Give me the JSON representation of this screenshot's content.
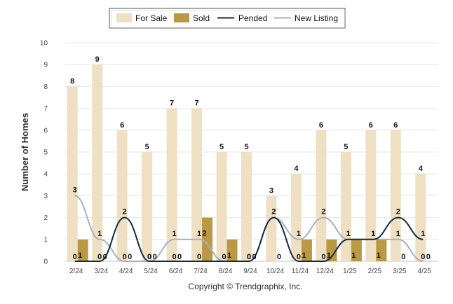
{
  "chart_data": {
    "type": "bar",
    "categories": [
      "2/24",
      "3/24",
      "4/24",
      "5/24",
      "6/24",
      "7/24",
      "8/24",
      "9/24",
      "10/24",
      "11/24",
      "12/24",
      "1/25",
      "2/25",
      "3/25",
      "4/25"
    ],
    "ylabel": "Number of Homes",
    "xlabel": "",
    "ylim": [
      0,
      10
    ],
    "yticks": [
      "0",
      "1",
      "2",
      "3",
      "4",
      "5",
      "6",
      "7",
      "8",
      "9",
      "10"
    ],
    "grid": true,
    "legend_position": "top-center",
    "series": [
      {
        "name": "For Sale",
        "kind": "bar",
        "color": "#efe0c3",
        "values": [
          8,
          9,
          6,
          5,
          7,
          7,
          5,
          5,
          3,
          4,
          6,
          5,
          6,
          6,
          4
        ]
      },
      {
        "name": "Sold",
        "kind": "bar",
        "color": "#bb9843",
        "values": [
          1,
          0,
          0,
          0,
          0,
          2,
          1,
          0,
          0,
          1,
          1,
          1,
          1,
          0,
          0
        ]
      },
      {
        "name": "Pended",
        "kind": "line",
        "color": "#0f2b46",
        "values": [
          0,
          0,
          2,
          0,
          0,
          0,
          0,
          0,
          2,
          0,
          0,
          1,
          1,
          2,
          1
        ]
      },
      {
        "name": "New Listing",
        "kind": "line",
        "color": "#a7b0c0",
        "values": [
          3,
          1,
          0,
          0,
          1,
          1,
          0,
          0,
          2,
          1,
          2,
          1,
          1,
          1,
          0
        ]
      }
    ],
    "credit": "Copyright © Trendgraphix, Inc."
  }
}
